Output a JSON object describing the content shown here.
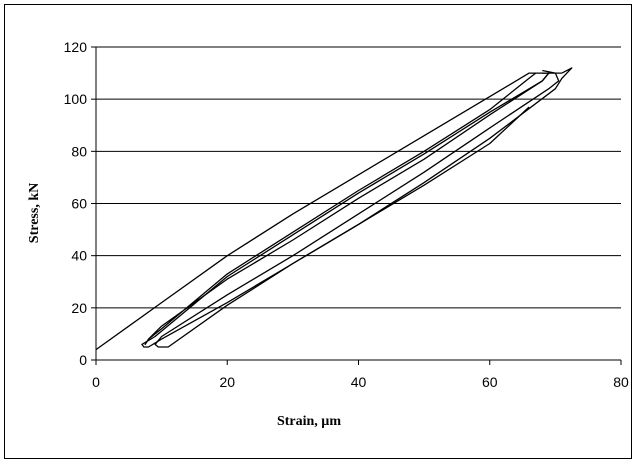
{
  "chart_data": {
    "type": "line",
    "title": "",
    "xlabel": "Strain, µm",
    "ylabel": "Stress, kN",
    "xlim": [
      0,
      80
    ],
    "ylim": [
      0,
      120
    ],
    "x_ticks": [
      0,
      20,
      40,
      60,
      80
    ],
    "y_ticks": [
      0,
      20,
      40,
      60,
      80,
      100,
      120
    ],
    "grid": "horizontal",
    "legend": "none",
    "series": [
      {
        "x": [
          0,
          10,
          20,
          30,
          40,
          50,
          60,
          66,
          71
        ],
        "y": [
          4,
          22,
          40,
          56,
          71,
          86,
          101,
          110,
          110
        ]
      },
      {
        "x": [
          71,
          72.5,
          71,
          70,
          60,
          50,
          40,
          30,
          20,
          10,
          8,
          7.3,
          7,
          9,
          20,
          30,
          40,
          50,
          60,
          68,
          69,
          68
        ],
        "y": [
          110,
          112,
          108,
          104,
          85,
          68,
          52,
          37,
          22,
          8,
          5,
          5,
          6,
          9,
          32,
          48,
          64,
          79,
          95,
          107,
          110,
          110
        ]
      },
      {
        "x": [
          69,
          68,
          60,
          50,
          40,
          30,
          20,
          10,
          8,
          7.5,
          8,
          10,
          20,
          30,
          40,
          50,
          60,
          66,
          67
        ],
        "y": [
          110,
          107,
          94,
          77,
          62,
          46,
          31,
          13,
          8,
          6,
          8,
          12,
          33,
          49,
          65,
          80,
          96,
          108,
          110
        ]
      },
      {
        "x": [
          68,
          70,
          70.5,
          69,
          60,
          50,
          40,
          30,
          20,
          10,
          9,
          9.5,
          11,
          20,
          30,
          40,
          50,
          60,
          66
        ],
        "y": [
          111,
          110,
          107,
          104,
          89,
          72,
          56,
          40,
          25,
          9,
          6,
          5,
          5,
          21,
          37,
          52,
          67,
          83,
          97
        ]
      }
    ]
  }
}
